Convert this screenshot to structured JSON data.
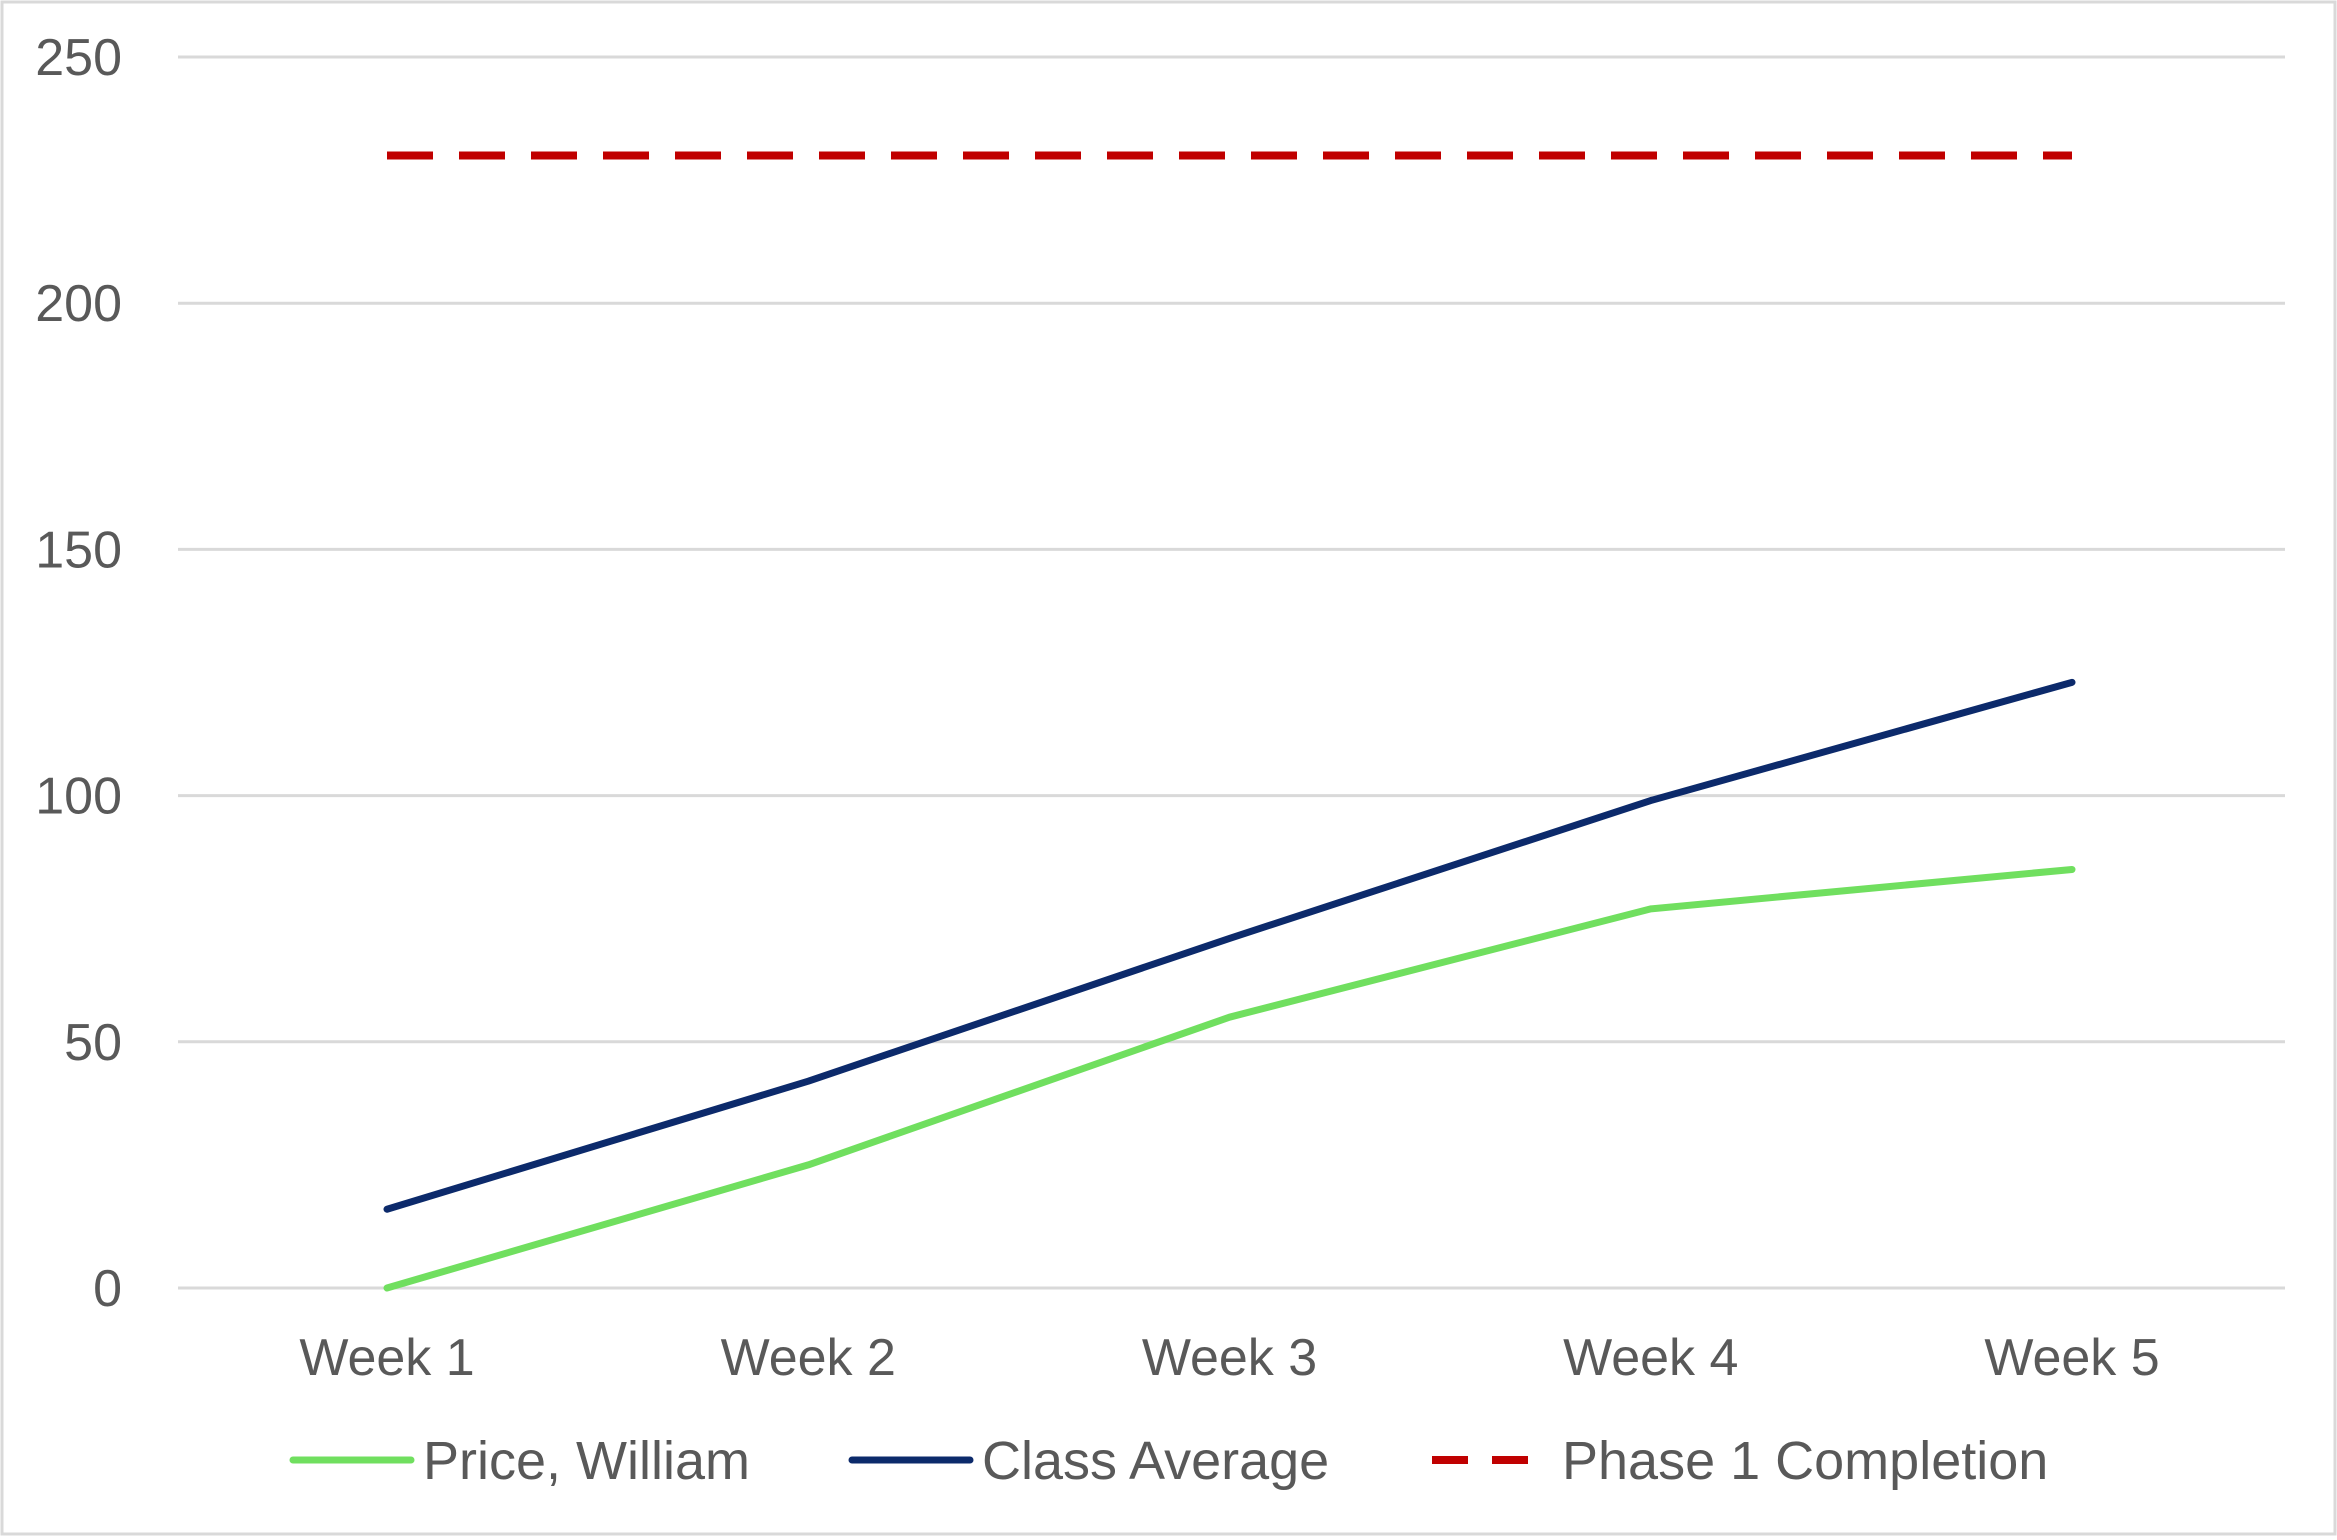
{
  "chart_data": {
    "type": "line",
    "categories": [
      "Week 1",
      "Week 2",
      "Week 3",
      "Week 4",
      "Week 5"
    ],
    "ylim": [
      0,
      250
    ],
    "y_ticks": [
      0,
      50,
      100,
      150,
      200,
      250
    ],
    "grid": true,
    "legend_position": "bottom",
    "series": [
      {
        "name": "Price, William",
        "values": [
          0,
          25,
          55,
          77,
          85
        ],
        "color": "#70DF5F",
        "dash": "solid"
      },
      {
        "name": "Class Average",
        "values": [
          16,
          42,
          71,
          99,
          123
        ],
        "color": "#0C2A6B",
        "dash": "solid"
      },
      {
        "name": "Phase 1 Completion",
        "values": [
          230,
          230,
          230,
          230,
          230
        ],
        "color": "#C00000",
        "dash": "dashed"
      }
    ]
  }
}
